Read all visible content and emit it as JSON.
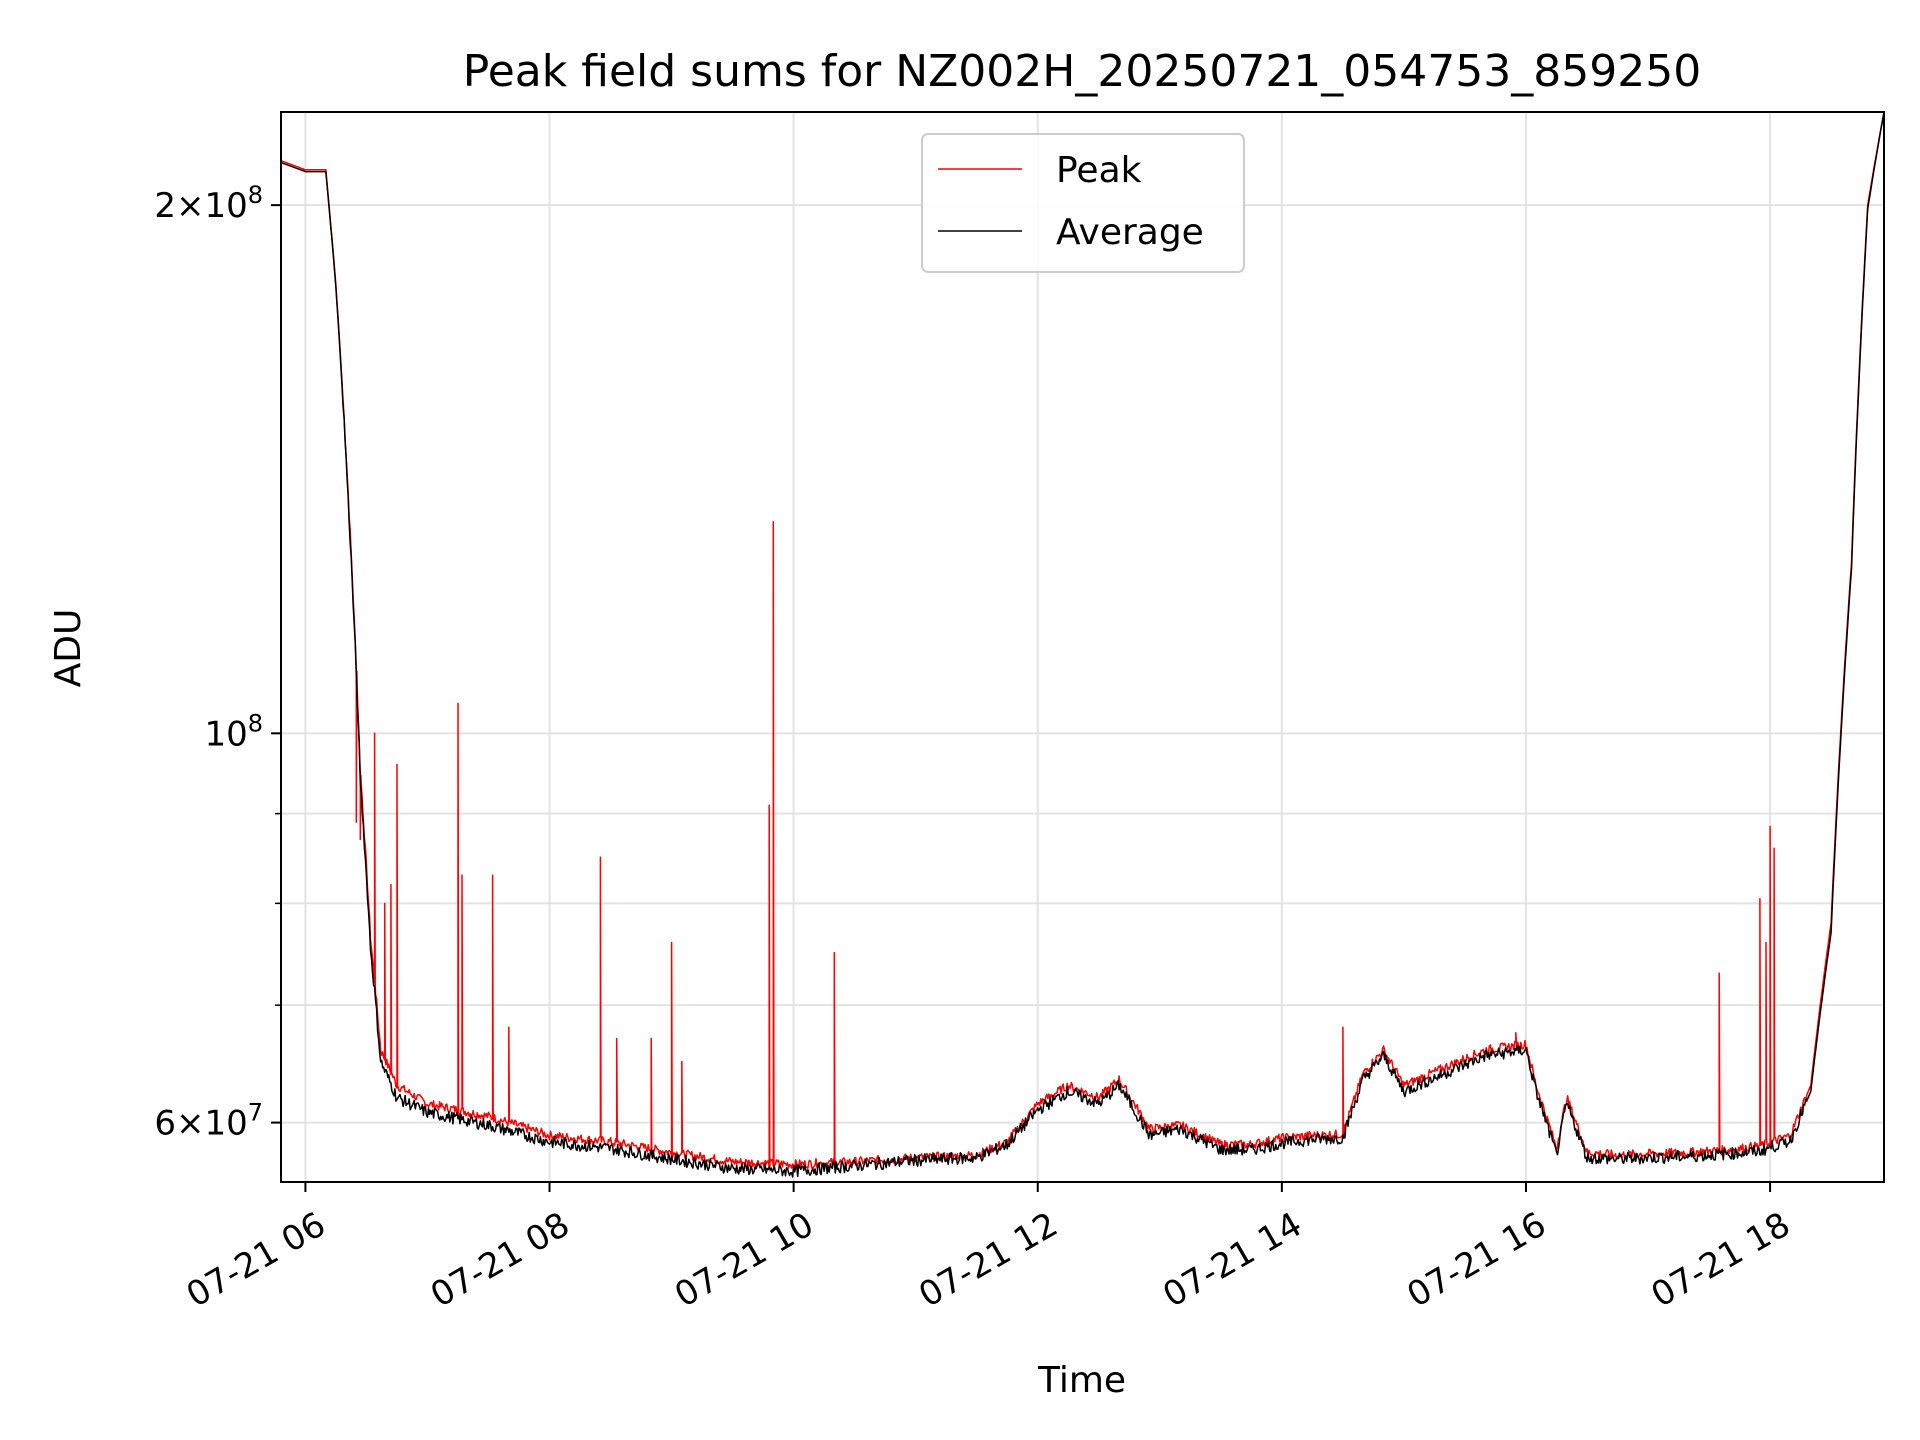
{
  "chart_data": {
    "type": "line",
    "title": "Peak field sums for NZ002H_20250721_054753_859250",
    "xlabel": "Time",
    "ylabel": "ADU",
    "yscale": "log",
    "grid": true,
    "legend_position": "upper center",
    "x_ticks": [
      "07-21 06",
      "07-21 08",
      "07-21 10",
      "07-21 12",
      "07-21 14",
      "07-21 16",
      "07-21 18"
    ],
    "x_tick_hours": [
      6,
      8,
      10,
      12,
      14,
      16,
      18
    ],
    "y_ticks": [
      {
        "value": 200000000,
        "mant": "2",
        "exp": "8"
      },
      {
        "value": 100000000,
        "mant": "",
        "exp": "8"
      },
      {
        "value": 60000000,
        "mant": "6",
        "exp": "7"
      }
    ],
    "y_minor_ticks": [
      70000000,
      80000000,
      90000000
    ],
    "xlim": [
      "2025-07-21 05:48",
      "2025-07-21 18:56"
    ],
    "ylim": [
      55500000,
      226000000
    ],
    "series": [
      {
        "name": "Peak",
        "color": "#ff0000",
        "x": [
          "05:48",
          "06:00",
          "06:10",
          "06:15",
          "06:22",
          "06:27",
          "06:32",
          "06:37",
          "06:45",
          "07:00",
          "07:30",
          "08:00",
          "08:30",
          "09:00",
          "09:30",
          "10:00",
          "10:30",
          "11:00",
          "11:30",
          "11:45",
          "12:00",
          "12:15",
          "12:30",
          "12:40",
          "12:55",
          "13:10",
          "13:30",
          "13:45",
          "14:00",
          "14:15",
          "14:30",
          "14:40",
          "14:50",
          "15:00",
          "15:20",
          "15:40",
          "16:00",
          "16:05",
          "16:15",
          "16:20",
          "16:30",
          "16:45",
          "17:00",
          "17:20",
          "17:40",
          "17:55",
          "18:10",
          "18:20",
          "18:30",
          "18:40",
          "18:48",
          "18:56"
        ],
        "y": [
          212000000,
          209500000,
          209500000,
          180000000,
          130000000,
          95000000,
          76500000,
          66000000,
          63000000,
          61500000,
          60500000,
          59000000,
          58500000,
          57700000,
          57000000,
          56800000,
          57000000,
          57300000,
          57500000,
          58500000,
          61500000,
          63000000,
          62000000,
          63500000,
          59500000,
          59800000,
          58300000,
          58300000,
          58800000,
          59000000,
          59100000,
          64000000,
          66000000,
          63000000,
          64500000,
          66000000,
          66500000,
          63000000,
          58000000,
          62000000,
          57700000,
          57500000,
          57600000,
          57700000,
          57900000,
          58200000,
          59000000,
          63000000,
          78000000,
          125000000,
          200000000,
          226000000
        ],
        "spikes": [
          [
            "06:25",
            89000000
          ],
          [
            "06:27",
            87000000
          ],
          [
            "06:34",
            100000000
          ],
          [
            "06:39",
            80000000
          ],
          [
            "06:42",
            82000000
          ],
          [
            "06:45",
            96000000
          ],
          [
            "07:15",
            104000000
          ],
          [
            "07:17",
            83000000
          ],
          [
            "07:32",
            83000000
          ],
          [
            "07:40",
            68000000
          ],
          [
            "08:25",
            85000000
          ],
          [
            "08:33",
            67000000
          ],
          [
            "08:50",
            67000000
          ],
          [
            "09:00",
            76000000
          ],
          [
            "09:05",
            65000000
          ],
          [
            "09:48",
            91000000
          ],
          [
            "09:50",
            132000000
          ],
          [
            "10:20",
            75000000
          ],
          [
            "14:30",
            68000000
          ],
          [
            "15:55",
            67500000
          ],
          [
            "17:35",
            73000000
          ],
          [
            "17:55",
            80500000
          ],
          [
            "17:58",
            76000000
          ],
          [
            "18:00",
            88500000
          ],
          [
            "18:02",
            86000000
          ]
        ]
      },
      {
        "name": "Average",
        "color": "#000000",
        "x": [
          "05:48",
          "06:00",
          "06:10",
          "06:15",
          "06:22",
          "06:27",
          "06:32",
          "06:37",
          "06:45",
          "07:00",
          "07:30",
          "08:00",
          "08:30",
          "09:00",
          "09:30",
          "10:00",
          "10:30",
          "11:00",
          "11:30",
          "11:45",
          "12:00",
          "12:15",
          "12:30",
          "12:40",
          "12:55",
          "13:10",
          "13:30",
          "13:45",
          "14:00",
          "14:15",
          "14:30",
          "14:40",
          "14:50",
          "15:00",
          "15:20",
          "15:40",
          "16:00",
          "16:05",
          "16:15",
          "16:20",
          "16:30",
          "16:45",
          "17:00",
          "17:20",
          "17:40",
          "17:55",
          "18:10",
          "18:20",
          "18:30",
          "18:40",
          "18:48",
          "18:56"
        ],
        "y": [
          211500000,
          209000000,
          209000000,
          179500000,
          129000000,
          94000000,
          75500000,
          65000000,
          62000000,
          60800000,
          59800000,
          58500000,
          58000000,
          57200000,
          56500000,
          56300000,
          56700000,
          57100000,
          57300000,
          58300000,
          61000000,
          62500000,
          61500000,
          63000000,
          59000000,
          59500000,
          57900000,
          57900000,
          58400000,
          58700000,
          58800000,
          63500000,
          65500000,
          62500000,
          64000000,
          65500000,
          66000000,
          62500000,
          57500000,
          61500000,
          57300000,
          57200000,
          57300000,
          57400000,
          57600000,
          57800000,
          58600000,
          62500000,
          77000000,
          124000000,
          199000000,
          226000000
        ]
      }
    ]
  }
}
